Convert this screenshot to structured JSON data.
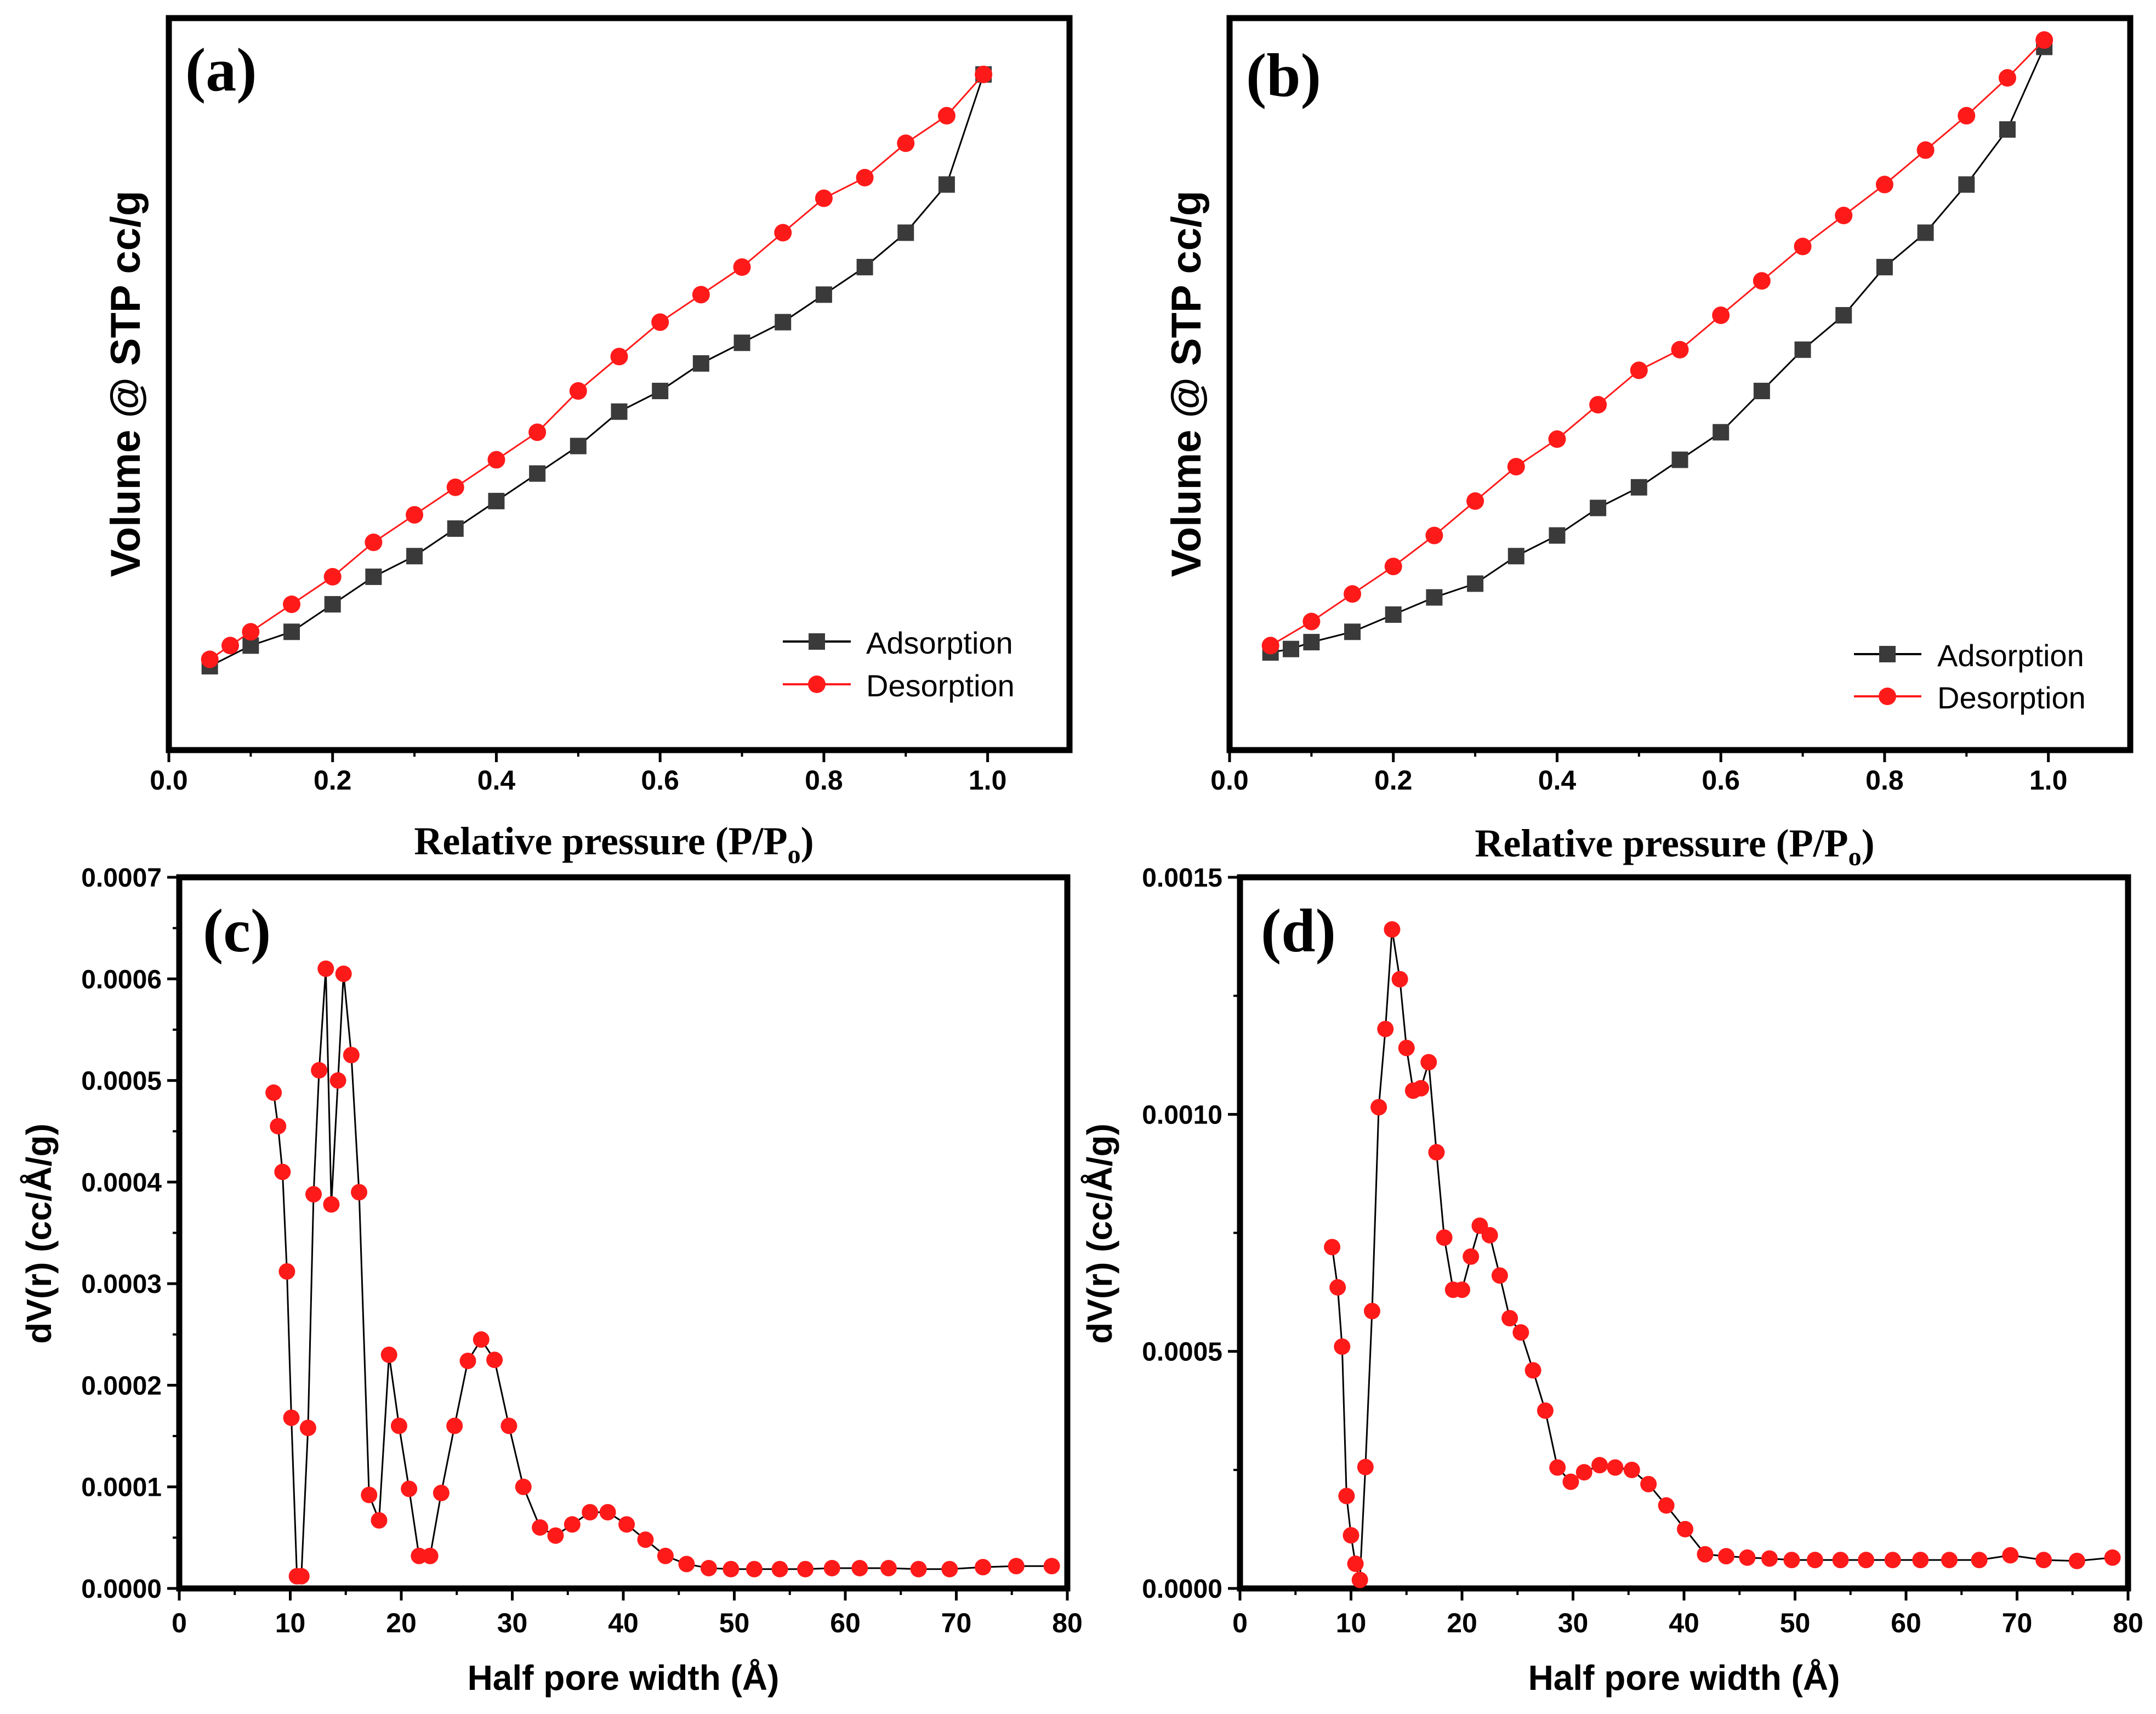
{
  "colors": {
    "adsorption": "#3a3a3a",
    "desorption": "#ff1a1a",
    "axis": "#000000",
    "background": "#ffffff"
  },
  "chart_data": [
    {
      "id": "a",
      "panel_label": "(a)",
      "type": "line",
      "title": "",
      "xlabel_main": "Relative pressure (P/P",
      "xlabel_sub": "o",
      "xlabel_close": ")",
      "ylabel": "Volume @ STP cc/g",
      "xlim": [
        0.0,
        1.1
      ],
      "ylim": [
        0,
        1
      ],
      "xticks": [
        "0.0",
        "0.2",
        "0.4",
        "0.6",
        "0.8",
        "1.0"
      ],
      "yticks": [],
      "legend_position": "bottom-right",
      "series": [
        {
          "name": "Adsorption",
          "marker": "square",
          "x": [
            0.05,
            0.1,
            0.15,
            0.2,
            0.25,
            0.3,
            0.35,
            0.4,
            0.45,
            0.5,
            0.55,
            0.6,
            0.65,
            0.7,
            0.75,
            0.8,
            0.85,
            0.9,
            0.95,
            0.995
          ],
          "y": [
            0.09,
            0.12,
            0.14,
            0.18,
            0.22,
            0.25,
            0.29,
            0.33,
            0.37,
            0.41,
            0.46,
            0.49,
            0.53,
            0.56,
            0.59,
            0.63,
            0.67,
            0.72,
            0.79,
            0.95
          ]
        },
        {
          "name": "Desorption",
          "marker": "circle",
          "x": [
            0.05,
            0.075,
            0.1,
            0.15,
            0.2,
            0.25,
            0.3,
            0.35,
            0.4,
            0.45,
            0.5,
            0.55,
            0.6,
            0.65,
            0.7,
            0.75,
            0.8,
            0.85,
            0.9,
            0.95,
            0.995
          ],
          "y": [
            0.1,
            0.12,
            0.14,
            0.18,
            0.22,
            0.27,
            0.31,
            0.35,
            0.39,
            0.43,
            0.49,
            0.54,
            0.59,
            0.63,
            0.67,
            0.72,
            0.77,
            0.8,
            0.85,
            0.89,
            0.95
          ]
        }
      ]
    },
    {
      "id": "b",
      "panel_label": "(b)",
      "type": "line",
      "title": "",
      "xlabel_main": "Relative pressure (P/P",
      "xlabel_sub": "o",
      "xlabel_close": ")",
      "ylabel": "Volume @ STP cc/g",
      "xlim": [
        0.0,
        1.1
      ],
      "ylim": [
        0,
        1
      ],
      "xticks": [
        "0.0",
        "0.2",
        "0.4",
        "0.6",
        "0.8",
        "1.0"
      ],
      "yticks": [],
      "legend_position": "bottom-right",
      "series": [
        {
          "name": "Adsorption",
          "marker": "square",
          "x": [
            0.05,
            0.075,
            0.1,
            0.15,
            0.2,
            0.25,
            0.3,
            0.35,
            0.4,
            0.45,
            0.5,
            0.55,
            0.6,
            0.65,
            0.7,
            0.75,
            0.8,
            0.85,
            0.9,
            0.95,
            0.995
          ],
          "y": [
            0.11,
            0.115,
            0.125,
            0.14,
            0.165,
            0.19,
            0.21,
            0.25,
            0.28,
            0.32,
            0.35,
            0.39,
            0.43,
            0.49,
            0.55,
            0.6,
            0.67,
            0.72,
            0.79,
            0.87,
            0.99
          ]
        },
        {
          "name": "Desorption",
          "marker": "circle",
          "x": [
            0.05,
            0.1,
            0.15,
            0.2,
            0.25,
            0.3,
            0.35,
            0.4,
            0.45,
            0.5,
            0.55,
            0.6,
            0.65,
            0.7,
            0.75,
            0.8,
            0.85,
            0.9,
            0.95,
            0.995
          ],
          "y": [
            0.12,
            0.155,
            0.195,
            0.235,
            0.28,
            0.33,
            0.38,
            0.42,
            0.47,
            0.52,
            0.55,
            0.6,
            0.65,
            0.7,
            0.745,
            0.79,
            0.84,
            0.89,
            0.945,
            1.0
          ]
        }
      ]
    },
    {
      "id": "c",
      "panel_label": "(c)",
      "type": "scatter",
      "title": "",
      "xlabel": "Half pore width (Å)",
      "ylabel": "dV(r) (cc/Å/g)",
      "xlim": [
        0,
        80
      ],
      "ylim": [
        0,
        0.0007
      ],
      "xticks": [
        "0",
        "10",
        "20",
        "30",
        "40",
        "50",
        "60",
        "70",
        "80"
      ],
      "xtick_values": [
        0,
        10,
        20,
        30,
        40,
        50,
        60,
        70,
        80
      ],
      "yticks": [
        "0.0000",
        "0.0001",
        "0.0002",
        "0.0003",
        "0.0004",
        "0.0005",
        "0.0006",
        "0.0007"
      ],
      "ytick_values": [
        0,
        0.0001,
        0.0002,
        0.0003,
        0.0004,
        0.0005,
        0.0006,
        0.0007
      ],
      "series": [
        {
          "name": "dV(r)",
          "marker": "circle",
          "x": [
            8.5,
            8.9,
            9.3,
            9.7,
            10.1,
            10.6,
            11.0,
            11.6,
            12.1,
            12.6,
            13.2,
            13.7,
            14.3,
            14.8,
            15.5,
            16.2,
            17.1,
            18.0,
            18.9,
            19.8,
            20.7,
            21.6,
            22.6,
            23.6,
            24.8,
            26.0,
            27.2,
            28.4,
            29.7,
            31.0,
            32.5,
            33.9,
            35.4,
            37.0,
            38.6,
            40.3,
            42.0,
            43.8,
            45.7,
            47.7,
            49.7,
            51.8,
            54.1,
            56.4,
            58.8,
            61.3,
            63.9,
            66.6,
            69.4,
            72.4,
            75.4,
            78.6
          ],
          "y": [
            0.000488,
            0.000455,
            0.00041,
            0.000312,
            0.000168,
            1.2e-05,
            1.2e-05,
            0.000158,
            0.000388,
            0.00051,
            0.00061,
            0.000378,
            0.0005,
            0.000605,
            0.000525,
            0.00039,
            9.2e-05,
            6.7e-05,
            0.00023,
            0.00016,
            9.8e-05,
            3.2e-05,
            3.2e-05,
            9.4e-05,
            0.00016,
            0.000224,
            0.000245,
            0.000225,
            0.00016,
            0.0001,
            6e-05,
            5.2e-05,
            6.3e-05,
            7.5e-05,
            7.5e-05,
            6.3e-05,
            4.8e-05,
            3.2e-05,
            2.4e-05,
            2e-05,
            1.9e-05,
            1.9e-05,
            1.9e-05,
            1.9e-05,
            2e-05,
            2e-05,
            2e-05,
            1.9e-05,
            1.9e-05,
            2.1e-05,
            2.2e-05,
            2.2e-05
          ]
        }
      ]
    },
    {
      "id": "d",
      "panel_label": "(d)",
      "type": "scatter",
      "title": "",
      "xlabel": "Half pore width (Å)",
      "ylabel": "dV(r) (cc/Å/g)",
      "xlim": [
        0,
        80
      ],
      "ylim": [
        0,
        0.0015
      ],
      "xticks": [
        "0",
        "10",
        "20",
        "30",
        "40",
        "50",
        "60",
        "70",
        "80"
      ],
      "xtick_values": [
        0,
        10,
        20,
        30,
        40,
        50,
        60,
        70,
        80
      ],
      "yticks": [
        "0.0000",
        "0.0005",
        "0.0010",
        "0.0015"
      ],
      "ytick_values": [
        0,
        0.0005,
        0.001,
        0.0015
      ],
      "series": [
        {
          "name": "dV(r)",
          "marker": "circle",
          "x": [
            8.3,
            8.8,
            9.2,
            9.6,
            10.0,
            10.4,
            10.8,
            11.3,
            11.9,
            12.5,
            13.1,
            13.7,
            14.4,
            15.0,
            15.6,
            16.3,
            17.0,
            17.7,
            18.4,
            19.2,
            20.0,
            20.8,
            21.6,
            22.5,
            23.4,
            24.3,
            25.3,
            26.4,
            27.5,
            28.6,
            29.8,
            31.0,
            32.4,
            33.8,
            35.3,
            36.8,
            38.4,
            40.1,
            41.9,
            43.8,
            45.7,
            47.7,
            49.7,
            51.8,
            54.1,
            56.4,
            58.8,
            61.3,
            63.9,
            66.6,
            69.4,
            72.4,
            75.4,
            78.6
          ],
          "y": [
            0.00072,
            0.000635,
            0.00051,
            0.000195,
            0.000112,
            5.2e-05,
            1.8e-05,
            0.000256,
            0.000585,
            0.001015,
            0.00118,
            0.00139,
            0.001285,
            0.00114,
            0.00105,
            0.001055,
            0.00111,
            0.00092,
            0.00074,
            0.00063,
            0.00063,
            0.0007,
            0.000765,
            0.000745,
            0.00066,
            0.00057,
            0.00054,
            0.00046,
            0.000375,
            0.000255,
            0.000225,
            0.000245,
            0.00026,
            0.000255,
            0.00025,
            0.00022,
            0.000175,
            0.000125,
            7.2e-05,
            6.8e-05,
            6.5e-05,
            6.3e-05,
            6e-05,
            6e-05,
            6e-05,
            6e-05,
            6e-05,
            6e-05,
            6e-05,
            6e-05,
            7e-05,
            6e-05,
            5.8e-05,
            6.5e-05
          ]
        }
      ]
    }
  ]
}
